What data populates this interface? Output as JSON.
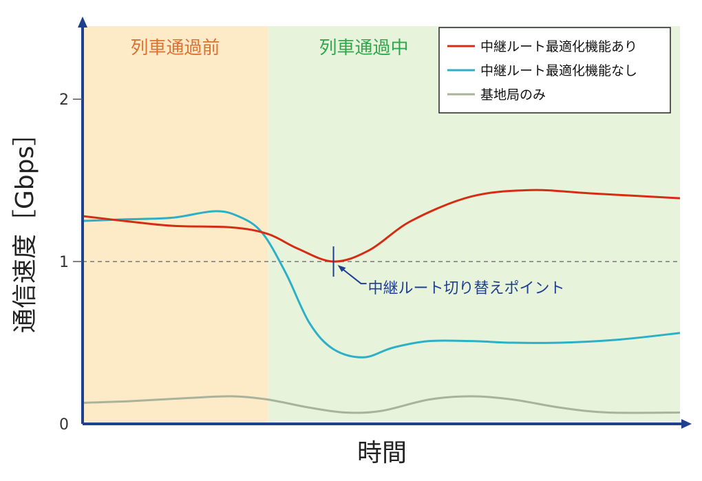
{
  "chart_data": {
    "type": "line",
    "xlabel": "時間",
    "ylabel": "通信速度［Gbps］",
    "ylim": [
      0,
      2.45
    ],
    "yticks": [
      {
        "value": 0,
        "label": "0"
      },
      {
        "value": 1,
        "label": "1"
      },
      {
        "value": 2,
        "label": "2"
      }
    ],
    "reference_line": {
      "y": 1,
      "style": "dashed"
    },
    "regions": [
      {
        "label": "列車通過前",
        "x_start": 0,
        "x_end": 0.31,
        "fill": "#fdebc8",
        "text_color": "#e07030"
      },
      {
        "label": "列車通過中",
        "x_start": 0.31,
        "x_end": 1.0,
        "fill": "#e8f3dc",
        "text_color": "#2ea84a"
      }
    ],
    "series": [
      {
        "name": "中継ルート最適化機能あり",
        "color": "#d42d14",
        "x": [
          0,
          0.07,
          0.15,
          0.25,
          0.31,
          0.36,
          0.42,
          0.48,
          0.55,
          0.65,
          0.75,
          0.85,
          1.0
        ],
        "y": [
          1.28,
          1.25,
          1.22,
          1.21,
          1.17,
          1.08,
          1.0,
          1.07,
          1.25,
          1.4,
          1.44,
          1.42,
          1.39
        ]
      },
      {
        "name": "中継ルート最適化機能なし",
        "color": "#2bb0c8",
        "x": [
          0,
          0.07,
          0.15,
          0.22,
          0.26,
          0.3,
          0.34,
          0.38,
          0.42,
          0.47,
          0.52,
          0.58,
          0.65,
          0.72,
          0.8,
          0.9,
          1.0
        ],
        "y": [
          1.25,
          1.26,
          1.27,
          1.31,
          1.28,
          1.18,
          0.93,
          0.62,
          0.46,
          0.41,
          0.47,
          0.51,
          0.51,
          0.5,
          0.5,
          0.52,
          0.56
        ]
      },
      {
        "name": "基地局のみ",
        "color": "#a9b29b",
        "x": [
          0,
          0.08,
          0.18,
          0.25,
          0.31,
          0.38,
          0.44,
          0.5,
          0.58,
          0.65,
          0.72,
          0.8,
          0.88,
          1.0
        ],
        "y": [
          0.13,
          0.14,
          0.16,
          0.17,
          0.15,
          0.1,
          0.07,
          0.08,
          0.15,
          0.17,
          0.15,
          0.1,
          0.07,
          0.07
        ]
      }
    ],
    "legend": {
      "position": "top-right"
    },
    "annotations": [
      {
        "text": "中継ルート切り替えポイント",
        "x": 0.42,
        "y": 1.0,
        "color": "#1f3f8f"
      }
    ]
  },
  "colors": {
    "axis": "#1f3f8f",
    "dashed_line": "#777777",
    "legend_border": "#222222"
  }
}
